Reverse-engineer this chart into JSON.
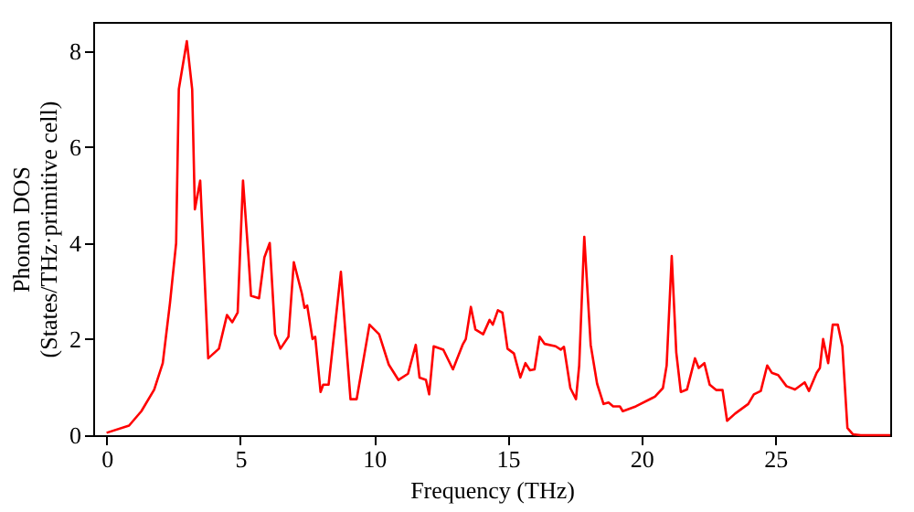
{
  "chart_data": {
    "type": "line",
    "xlabel": "Frequency (THz)",
    "ylabel": "Phonon DOS\n(States/THz·primitive cell)",
    "xlim": [
      -0.5,
      29.3
    ],
    "ylim": [
      0,
      8.6
    ],
    "xticks": [
      0,
      5,
      10,
      15,
      20,
      25
    ],
    "yticks": [
      0,
      2,
      4,
      6,
      8
    ],
    "grid": false,
    "marker": "none",
    "line_style": "solid",
    "series": [
      {
        "color": "#ff0000",
        "x": [
          0,
          0.84,
          1.3,
          1.78,
          2.1,
          2.37,
          2.6,
          2.7,
          3.0,
          3.2,
          3.3,
          3.5,
          3.8,
          4.2,
          4.5,
          4.7,
          4.9,
          5.1,
          5.3,
          5.4,
          5.7,
          5.9,
          6.1,
          6.3,
          6.5,
          6.8,
          7.0,
          7.3,
          7.4,
          7.5,
          7.7,
          7.8,
          8.0,
          8.1,
          8.3,
          8.76,
          9.0,
          9.12,
          9.35,
          9.83,
          10.19,
          10.55,
          10.91,
          11.27,
          11.56,
          11.7,
          11.94,
          12.06,
          12.23,
          12.59,
          12.95,
          13.31,
          13.43,
          13.62,
          13.79,
          14.08,
          14.32,
          14.44,
          14.63,
          14.8,
          14.99,
          15.23,
          15.47,
          15.66,
          15.83,
          16.0,
          16.19,
          16.38,
          16.79,
          16.98,
          17.1,
          17.34,
          17.55,
          17.67,
          17.86,
          18.1,
          18.34,
          18.58,
          18.77,
          18.94,
          19.19,
          19.3,
          19.79,
          20.39,
          20.5,
          20.8,
          20.94,
          21.13,
          21.3,
          21.47,
          21.7,
          22.0,
          22.14,
          22.35,
          22.55,
          22.79,
          23.03,
          23.2,
          23.5,
          23.99,
          24.2,
          24.46,
          24.7,
          24.87,
          25.11,
          25.42,
          25.74,
          26.1,
          26.26,
          26.55,
          26.67,
          26.79,
          26.98,
          27.15,
          27.34,
          27.51,
          27.7,
          27.9,
          28.2,
          29.3
        ],
        "values": [
          0.05,
          0.2,
          0.5,
          0.95,
          1.5,
          2.75,
          4.0,
          7.2,
          8.2,
          7.2,
          4.7,
          5.3,
          1.6,
          1.8,
          2.5,
          2.35,
          2.55,
          5.3,
          3.75,
          2.9,
          2.85,
          3.7,
          4.0,
          2.1,
          1.8,
          2.05,
          3.6,
          2.95,
          2.65,
          2.7,
          2.0,
          2.05,
          0.9,
          1.05,
          1.05,
          3.4,
          1.6,
          0.75,
          0.75,
          2.3,
          2.1,
          1.47,
          1.15,
          1.28,
          1.88,
          1.2,
          1.15,
          0.85,
          1.85,
          1.78,
          1.37,
          1.88,
          2.0,
          2.67,
          2.2,
          2.1,
          2.4,
          2.3,
          2.6,
          2.55,
          1.8,
          1.7,
          1.2,
          1.5,
          1.35,
          1.37,
          2.05,
          1.9,
          1.85,
          1.78,
          1.84,
          0.98,
          0.75,
          1.45,
          4.13,
          1.88,
          1.07,
          0.65,
          0.68,
          0.6,
          0.6,
          0.5,
          0.6,
          0.77,
          0.8,
          0.98,
          1.45,
          3.73,
          1.72,
          0.9,
          0.95,
          1.6,
          1.4,
          1.5,
          1.05,
          0.94,
          0.94,
          0.3,
          0.45,
          0.65,
          0.85,
          0.92,
          1.45,
          1.3,
          1.25,
          1.02,
          0.95,
          1.1,
          0.92,
          1.3,
          1.4,
          2.0,
          1.5,
          2.3,
          2.3,
          1.85,
          0.15,
          0.02,
          0,
          0
        ]
      }
    ]
  }
}
